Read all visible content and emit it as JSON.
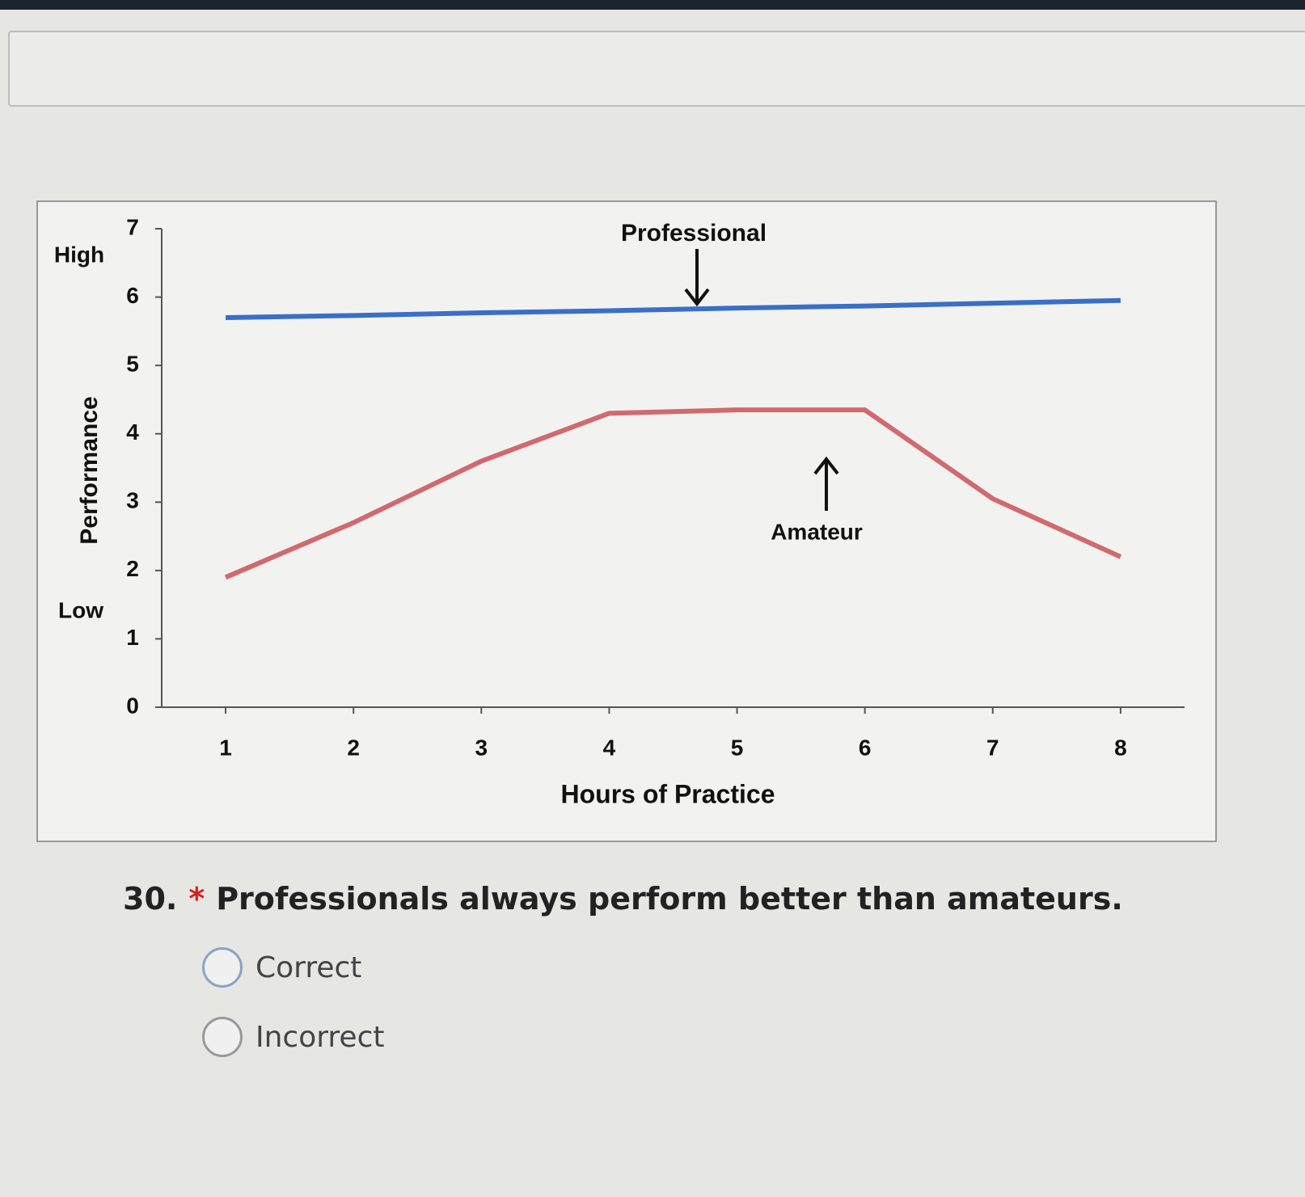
{
  "chart_data": {
    "type": "line",
    "ylabel": "Performance",
    "xlabel": "Hours of Practice",
    "annotations": [
      "High",
      "Low",
      "Professional",
      "Amateur"
    ],
    "x": [
      1,
      2,
      3,
      4,
      5,
      6,
      7,
      8
    ],
    "xlim": [
      0.5,
      8.5
    ],
    "xticks": [
      1,
      2,
      3,
      4,
      5,
      6,
      7,
      8
    ],
    "ylim": [
      0,
      7
    ],
    "yticks": [
      0,
      1,
      2,
      3,
      4,
      5,
      6,
      7
    ],
    "grid": false,
    "series": [
      {
        "name": "Professional",
        "color": "#3a6fc8",
        "values": [
          5.7,
          5.73,
          5.77,
          5.8,
          5.84,
          5.87,
          5.91,
          5.95
        ]
      },
      {
        "name": "Amateur",
        "color": "#d06a6e",
        "values": [
          1.9,
          2.7,
          3.6,
          4.3,
          4.35,
          4.35,
          3.05,
          2.2
        ]
      }
    ]
  },
  "question": {
    "number": "30.",
    "required": "*",
    "text": "Professionals always perform better than amateurs.",
    "options": [
      "Correct",
      "Incorrect"
    ]
  }
}
